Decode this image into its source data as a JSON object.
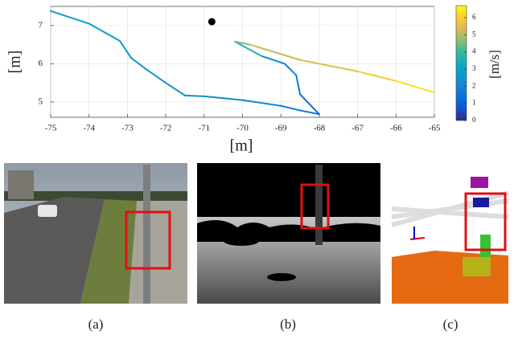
{
  "chart_data": {
    "type": "line",
    "xlabel": "[m]",
    "ylabel": "[m]",
    "colorbar_label": "[m/s]",
    "xlim": [
      -75,
      -65
    ],
    "ylim": [
      4.6,
      7.5
    ],
    "xticks": [
      -75,
      -74,
      -73,
      -72,
      -71,
      -70,
      -69,
      -68,
      -67,
      -66,
      -65
    ],
    "yticks": [
      5,
      6,
      7
    ],
    "clim": [
      0,
      6.7
    ],
    "cticks": [
      0,
      1,
      2,
      3,
      4,
      5,
      6
    ],
    "grid": true,
    "series": [
      {
        "x": [
          -75,
          -74,
          -73.2,
          -72.9,
          -72.5,
          -72,
          -71.5,
          -71,
          -70,
          -69,
          -68.5,
          -68,
          -68.5,
          -68.6,
          -68.9,
          -69.5,
          -70.2,
          -69.8,
          -68.5,
          -67,
          -66,
          -65
        ],
        "y": [
          7.38,
          7.05,
          6.6,
          6.15,
          5.85,
          5.5,
          5.17,
          5.15,
          5.05,
          4.9,
          4.78,
          4.68,
          5.2,
          5.7,
          6.0,
          6.2,
          6.58,
          6.5,
          6.1,
          5.8,
          5.55,
          5.25
        ],
        "speed": [
          2.8,
          2.8,
          2.7,
          2.6,
          2.5,
          2.4,
          2.3,
          2.2,
          2.0,
          1.8,
          1.6,
          1.4,
          1.6,
          1.8,
          2.2,
          3.6,
          4.5,
          5.2,
          5.5,
          5.9,
          6.3,
          6.5
        ]
      }
    ],
    "markers": [
      {
        "x": -70.8,
        "y": 7.1
      }
    ]
  },
  "panels": [
    {
      "label": "(a)"
    },
    {
      "label": "(b)"
    },
    {
      "label": "(c)"
    }
  ]
}
